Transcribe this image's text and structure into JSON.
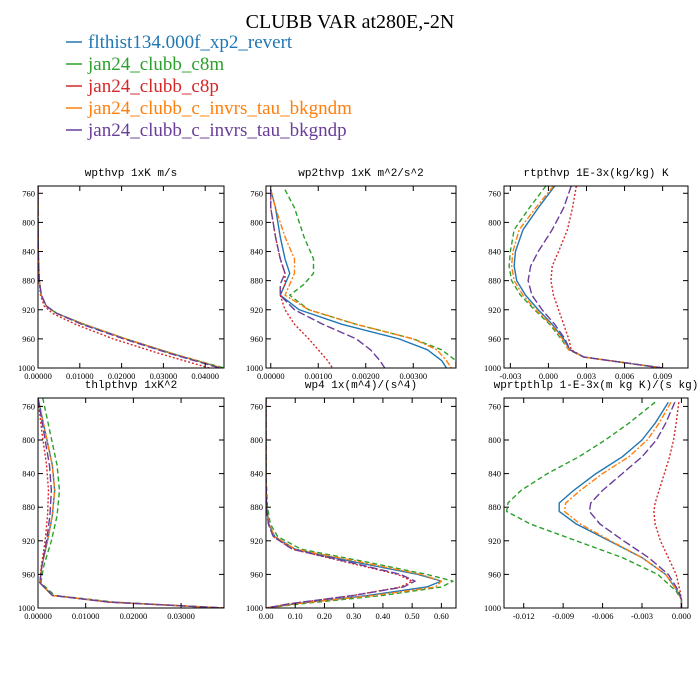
{
  "title": "CLUBB VAR at280E,-2N",
  "legend": [
    {
      "label": "flthist134.000f_xp2_revert",
      "color": "#1f77b4",
      "dash": ""
    },
    {
      "label": "jan24_clubb_c8m",
      "color": "#2ca02c",
      "dash": "5,3"
    },
    {
      "label": "jan24_clubb_c8p",
      "color": "#d62728",
      "dash": "2,2"
    },
    {
      "label": "jan24_clubb_c_invrs_tau_bkgndm",
      "color": "#ff7f0e",
      "dash": "6,2,2,2"
    },
    {
      "label": "jan24_clubb_c_invrs_tau_bkgndp",
      "color": "#6a3d9a",
      "dash": "8,3"
    }
  ],
  "chart_data": [
    {
      "type": "line",
      "title": "wpthvp  1xK m/s",
      "xlim": [
        0,
        0.0445
      ],
      "ylim": [
        1000,
        750
      ],
      "xticks": [
        0.0,
        0.01,
        0.02,
        0.03,
        0.04
      ],
      "xtick_labels": [
        "0.00000",
        "0.01000",
        "0.02000",
        "0.03000",
        "0.04000"
      ],
      "yticks": [
        760,
        800,
        840,
        880,
        920,
        960,
        1000
      ],
      "ytick_labels": [
        "760",
        "800",
        "840",
        "880",
        "920",
        "960",
        "1000"
      ],
      "y": [
        750,
        800,
        850,
        880,
        900,
        915,
        925,
        940,
        960,
        980,
        1000
      ],
      "series": [
        {
          "values": [
            0.0,
            0.0,
            0.0001,
            0.0003,
            0.0008,
            0.002,
            0.0045,
            0.011,
            0.021,
            0.032,
            0.044
          ]
        },
        {
          "values": [
            0.0,
            0.0,
            0.0001,
            0.0003,
            0.0008,
            0.002,
            0.0045,
            0.011,
            0.021,
            0.032,
            0.0445
          ]
        },
        {
          "values": [
            0.0,
            0.0,
            0.0001,
            0.0003,
            0.0006,
            0.0015,
            0.0035,
            0.009,
            0.018,
            0.029,
            0.041
          ]
        },
        {
          "values": [
            0.0,
            0.0,
            0.0001,
            0.0003,
            0.0008,
            0.002,
            0.0045,
            0.011,
            0.021,
            0.032,
            0.044
          ]
        },
        {
          "values": [
            0.0,
            0.0,
            0.0001,
            0.0003,
            0.0008,
            0.002,
            0.0045,
            0.0105,
            0.0205,
            0.0315,
            0.0435
          ]
        }
      ]
    },
    {
      "type": "line",
      "title": "wp2thvp  1xK m^2/s^2",
      "xlim": [
        -0.0001,
        0.0039
      ],
      "ylim": [
        1000,
        750
      ],
      "xticks": [
        0.0,
        0.001,
        0.002,
        0.003
      ],
      "xtick_labels": [
        "0.00000",
        "0.00100",
        "0.00200",
        "0.00300"
      ],
      "yticks": [
        760,
        800,
        840,
        880,
        920,
        960,
        1000
      ],
      "ytick_labels": [
        "760",
        "800",
        "840",
        "880",
        "920",
        "960",
        "1000"
      ],
      "y": [
        755,
        780,
        820,
        850,
        870,
        885,
        900,
        920,
        940,
        960,
        975,
        990,
        1000
      ],
      "series": [
        {
          "values": [
            0.0,
            0.0001,
            0.0002,
            0.0003,
            0.0004,
            0.0003,
            0.0002,
            0.0006,
            0.0015,
            0.0027,
            0.0033,
            0.0036,
            0.0037
          ]
        },
        {
          "values": [
            0.0003,
            0.0005,
            0.0007,
            0.0009,
            0.0009,
            0.0007,
            0.0004,
            0.0008,
            0.0018,
            0.003,
            0.0036,
            0.0039,
            0.0039
          ]
        },
        {
          "values": [
            0.0,
            0.0,
            0.0001,
            0.0002,
            0.0003,
            0.0003,
            0.0002,
            0.0003,
            0.0005,
            0.0008,
            0.001,
            0.0012,
            0.0013
          ]
        },
        {
          "values": [
            0.0,
            0.0001,
            0.0003,
            0.0005,
            0.0005,
            0.0004,
            0.0003,
            0.0008,
            0.0018,
            0.003,
            0.0035,
            0.0037,
            0.0038
          ]
        },
        {
          "values": [
            0.0,
            0.0,
            0.0001,
            0.0002,
            0.0003,
            0.0002,
            0.0002,
            0.0005,
            0.0011,
            0.0018,
            0.0021,
            0.0023,
            0.0024
          ]
        }
      ]
    },
    {
      "type": "line",
      "title": "rtpthvp  1E-3x(kg/kg) K",
      "xlim": [
        -0.0035,
        0.011
      ],
      "ylim": [
        1000,
        750
      ],
      "xticks": [
        -0.003,
        0.0,
        0.003,
        0.006,
        0.009
      ],
      "xtick_labels": [
        "-0.003",
        "0.000",
        "0.003",
        "0.006",
        "0.009"
      ],
      "yticks": [
        760,
        800,
        840,
        880,
        920,
        960,
        1000
      ],
      "ytick_labels": [
        "760",
        "800",
        "840",
        "880",
        "920",
        "960",
        "1000"
      ],
      "y": [
        750,
        780,
        810,
        840,
        860,
        880,
        900,
        920,
        940,
        960,
        975,
        985,
        1000
      ],
      "series": [
        {
          "values": [
            0.0005,
            -0.0008,
            -0.002,
            -0.0026,
            -0.0027,
            -0.0025,
            -0.0018,
            -0.0008,
            0.0003,
            0.0012,
            0.0017,
            0.0028,
            0.009
          ]
        },
        {
          "values": [
            -0.0002,
            -0.0015,
            -0.0027,
            -0.003,
            -0.0031,
            -0.0029,
            -0.0022,
            -0.0011,
            0.0001,
            0.001,
            0.0016,
            0.0028,
            0.009
          ]
        },
        {
          "values": [
            0.0022,
            0.0019,
            0.0015,
            0.0008,
            0.0003,
            0.0002,
            0.0004,
            0.0008,
            0.0012,
            0.0016,
            0.0018,
            0.0028,
            0.009
          ]
        },
        {
          "values": [
            0.0004,
            -0.001,
            -0.0023,
            -0.0028,
            -0.0029,
            -0.0027,
            -0.002,
            -0.001,
            0.0002,
            0.0011,
            0.0016,
            0.0028,
            0.009
          ]
        },
        {
          "values": [
            0.0018,
            0.0012,
            0.0003,
            -0.0008,
            -0.0014,
            -0.0016,
            -0.0013,
            -0.0005,
            0.0005,
            0.0013,
            0.0017,
            0.0028,
            0.009
          ]
        }
      ]
    },
    {
      "type": "line",
      "title": "thlpthvp  1xK^2",
      "xlim": [
        0,
        0.039
      ],
      "ylim": [
        1000,
        750
      ],
      "xticks": [
        0.0,
        0.01,
        0.02,
        0.03
      ],
      "xtick_labels": [
        "0.00000",
        "0.01000",
        "0.02000",
        "0.03000"
      ],
      "yticks": [
        760,
        800,
        840,
        880,
        920,
        960,
        1000
      ],
      "ytick_labels": [
        "760",
        "800",
        "840",
        "880",
        "920",
        "960",
        "1000"
      ],
      "y": [
        750,
        790,
        830,
        860,
        890,
        920,
        950,
        970,
        985,
        993,
        1000
      ],
      "series": [
        {
          "values": [
            0.0,
            0.0015,
            0.003,
            0.0035,
            0.003,
            0.002,
            0.0008,
            0.0004,
            0.003,
            0.015,
            0.039
          ]
        },
        {
          "values": [
            0.001,
            0.0025,
            0.004,
            0.0045,
            0.004,
            0.0028,
            0.0012,
            0.0006,
            0.0035,
            0.016,
            0.039
          ]
        },
        {
          "values": [
            0.0,
            0.0008,
            0.0018,
            0.0022,
            0.002,
            0.0015,
            0.0007,
            0.0004,
            0.003,
            0.015,
            0.039
          ]
        },
        {
          "values": [
            0.0,
            0.0015,
            0.003,
            0.0035,
            0.003,
            0.002,
            0.0008,
            0.0004,
            0.003,
            0.015,
            0.039
          ]
        },
        {
          "values": [
            0.0,
            0.0012,
            0.0024,
            0.0028,
            0.0025,
            0.0018,
            0.0008,
            0.0004,
            0.003,
            0.015,
            0.039
          ]
        }
      ]
    },
    {
      "type": "line",
      "title": "wp4  1x(m^4)/(s^4)",
      "xlim": [
        0,
        0.65
      ],
      "ylim": [
        1000,
        750
      ],
      "xticks": [
        0.0,
        0.1,
        0.2,
        0.3,
        0.4,
        0.5,
        0.6
      ],
      "xtick_labels": [
        "0.00",
        "0.10",
        "0.20",
        "0.30",
        "0.40",
        "0.50",
        "0.60"
      ],
      "yticks": [
        760,
        800,
        840,
        880,
        920,
        960,
        1000
      ],
      "ytick_labels": [
        "760",
        "800",
        "840",
        "880",
        "920",
        "960",
        "1000"
      ],
      "y": [
        750,
        800,
        850,
        880,
        900,
        915,
        930,
        945,
        960,
        968,
        975,
        985,
        995,
        1000
      ],
      "series": [
        {
          "values": [
            0.0,
            0.0,
            0.0,
            0.002,
            0.01,
            0.03,
            0.1,
            0.3,
            0.52,
            0.6,
            0.55,
            0.35,
            0.1,
            0.0
          ]
        },
        {
          "values": [
            0.0,
            0.0,
            0.001,
            0.005,
            0.015,
            0.04,
            0.12,
            0.34,
            0.55,
            0.64,
            0.6,
            0.4,
            0.12,
            0.0
          ]
        },
        {
          "values": [
            0.0,
            0.0,
            0.0,
            0.002,
            0.008,
            0.025,
            0.09,
            0.27,
            0.45,
            0.5,
            0.46,
            0.3,
            0.08,
            0.0
          ]
        },
        {
          "values": [
            0.0,
            0.0,
            0.0,
            0.002,
            0.01,
            0.03,
            0.1,
            0.32,
            0.53,
            0.6,
            0.58,
            0.37,
            0.1,
            0.0
          ]
        },
        {
          "values": [
            0.0,
            0.0,
            0.0,
            0.002,
            0.008,
            0.025,
            0.09,
            0.28,
            0.46,
            0.51,
            0.47,
            0.3,
            0.08,
            0.0
          ]
        }
      ]
    },
    {
      "type": "line",
      "title": "wprtpthlp  1-E-3x(m kg K)/(s kg)",
      "xlim": [
        -0.0135,
        0.0005
      ],
      "ylim": [
        1000,
        750
      ],
      "xticks": [
        -0.012,
        -0.009,
        -0.006,
        -0.003,
        0.0
      ],
      "xtick_labels": [
        "-0.012",
        "-0.009",
        "-0.006",
        "-0.003",
        "0.000"
      ],
      "yticks": [
        760,
        800,
        840,
        880,
        920,
        960,
        1000
      ],
      "ytick_labels": [
        "760",
        "800",
        "840",
        "880",
        "920",
        "960",
        "1000"
      ],
      "y": [
        755,
        780,
        800,
        820,
        840,
        860,
        875,
        885,
        900,
        920,
        940,
        960,
        980,
        990,
        1000
      ],
      "series": [
        {
          "values": [
            -0.001,
            -0.002,
            -0.003,
            -0.0045,
            -0.0065,
            -0.0082,
            -0.0093,
            -0.0093,
            -0.008,
            -0.0055,
            -0.003,
            -0.0012,
            -0.0003,
            0.0,
            0.0
          ]
        },
        {
          "values": [
            -0.002,
            -0.004,
            -0.0058,
            -0.0078,
            -0.0102,
            -0.0122,
            -0.0132,
            -0.0133,
            -0.0115,
            -0.008,
            -0.0045,
            -0.0018,
            -0.0004,
            0.0,
            0.0
          ]
        },
        {
          "values": [
            -0.0002,
            -0.0004,
            -0.0006,
            -0.0009,
            -0.0013,
            -0.0017,
            -0.002,
            -0.0021,
            -0.002,
            -0.0016,
            -0.001,
            -0.0004,
            -0.0001,
            0.0,
            0.0
          ]
        },
        {
          "values": [
            -0.0008,
            -0.0017,
            -0.0026,
            -0.004,
            -0.006,
            -0.0077,
            -0.0088,
            -0.0089,
            -0.0077,
            -0.0054,
            -0.003,
            -0.0012,
            -0.0003,
            0.0,
            0.0
          ]
        },
        {
          "values": [
            -0.0005,
            -0.0012,
            -0.0019,
            -0.003,
            -0.0045,
            -0.006,
            -0.0069,
            -0.007,
            -0.0062,
            -0.0044,
            -0.0025,
            -0.001,
            -0.0002,
            0.0,
            0.0
          ]
        }
      ]
    }
  ]
}
